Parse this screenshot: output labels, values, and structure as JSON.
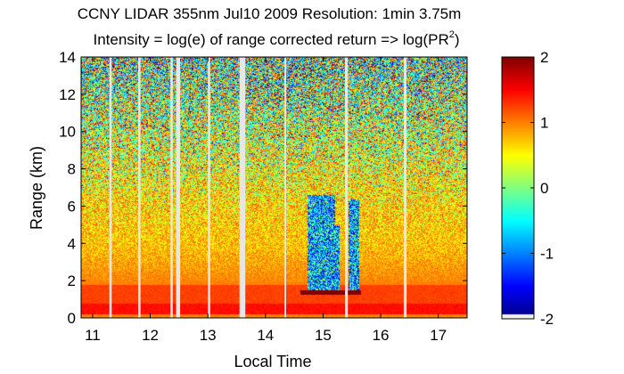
{
  "chart_data": {
    "type": "heatmap",
    "title": "CCNY LIDAR 355nm Jul10 2009 Resolution: 1min 3.75m",
    "subtitle_prefix": "Intensity = log(e) of range corrected return => log(PR",
    "subtitle_sup": "2",
    "subtitle_suffix": ")",
    "xlabel": "Local Time",
    "ylabel": "Range (km)",
    "xlim": [
      10.8,
      17.5
    ],
    "ylim": [
      0,
      14
    ],
    "x_ticks": [
      11,
      12,
      13,
      14,
      15,
      16,
      17
    ],
    "y_ticks": [
      0,
      2,
      4,
      6,
      8,
      10,
      12,
      14
    ],
    "colorbar": {
      "range": [
        -2,
        2
      ],
      "ticks": [
        2,
        1,
        0,
        -1,
        -2
      ],
      "colormap": "jet"
    },
    "data_gaps": [
      {
        "start": 11.29,
        "end": 11.33
      },
      {
        "start": 11.79,
        "end": 11.83
      },
      {
        "start": 12.35,
        "end": 12.39
      },
      {
        "start": 12.45,
        "end": 12.52
      },
      {
        "start": 13.0,
        "end": 13.04
      },
      {
        "start": 13.55,
        "end": 13.65
      },
      {
        "start": 14.33,
        "end": 14.36
      },
      {
        "start": 15.38,
        "end": 15.43
      },
      {
        "start": 16.4,
        "end": 16.45
      }
    ],
    "low_signal_columns": [
      {
        "start": 14.72,
        "end": 15.2,
        "top_km": 6.6
      },
      {
        "start": 15.2,
        "end": 15.28,
        "top_km": 5.0
      },
      {
        "start": 15.43,
        "end": 15.62,
        "top_km": 6.4
      }
    ],
    "cloud_base_km": 1.4,
    "boundary_layer_top_km": 1.8
  }
}
